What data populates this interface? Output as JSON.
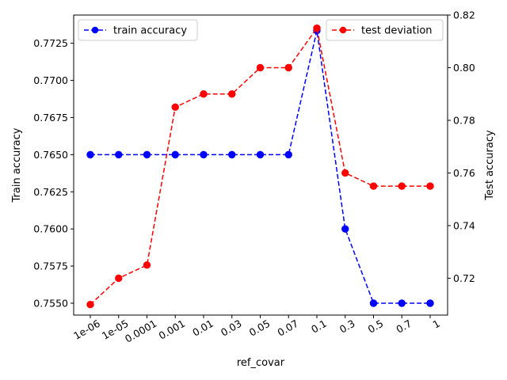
{
  "chart_data": {
    "type": "line",
    "categories": [
      "1e-06",
      "1e-05",
      "0.0001",
      "0.001",
      "0.01",
      "0.03",
      "0.05",
      "0.07",
      "0.1",
      "0.3",
      "0.5",
      "0.7",
      "1"
    ],
    "xlabel": "ref_covar",
    "ylabel_left": "Train accuracy",
    "ylabel_right": "Test accuracy",
    "ylim_left": [
      0.7542,
      0.7744
    ],
    "ylim_right": [
      0.706,
      0.82
    ],
    "yticks_left": [
      0.755,
      0.7575,
      0.76,
      0.7625,
      0.765,
      0.7675,
      0.77,
      0.7725
    ],
    "yticks_left_labels": [
      "0.7550",
      "0.7575",
      "0.7600",
      "0.7625",
      "0.7650",
      "0.7675",
      "0.7700",
      "0.7725"
    ],
    "yticks_right": [
      0.72,
      0.74,
      0.76,
      0.78,
      0.8,
      0.82
    ],
    "yticks_right_labels": [
      "0.72",
      "0.74",
      "0.76",
      "0.78",
      "0.80",
      "0.82"
    ],
    "grid": false,
    "series": [
      {
        "name": "train accuracy",
        "axis": "left",
        "color": "#0000ff",
        "values": [
          0.765,
          0.765,
          0.765,
          0.765,
          0.765,
          0.765,
          0.765,
          0.765,
          0.77335,
          0.76,
          0.755,
          0.755,
          0.755
        ],
        "legend_position": "top-left"
      },
      {
        "name": "test deviation",
        "axis": "right",
        "color": "#ff0000",
        "values": [
          0.71,
          0.72,
          0.725,
          0.785,
          0.79,
          0.79,
          0.8,
          0.8,
          0.815,
          0.76,
          0.755,
          0.755,
          0.755
        ],
        "legend_position": "top-right"
      }
    ]
  }
}
